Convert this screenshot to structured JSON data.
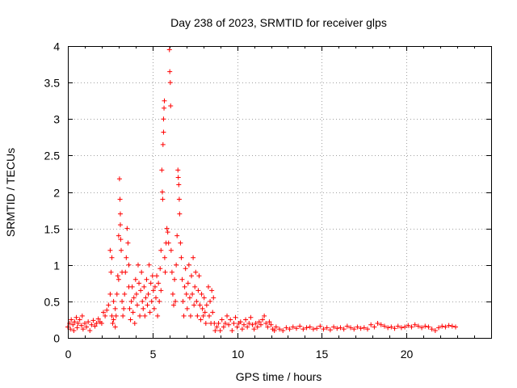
{
  "chart_data": {
    "type": "scatter",
    "title": "Day 238 of 2023, SRMTID for receiver glps",
    "xlabel": "GPS time / hours",
    "ylabel": "SRMTID / TECUs",
    "xlim": [
      0,
      25
    ],
    "ylim": [
      0,
      4
    ],
    "x_ticks": [
      0,
      5,
      10,
      15,
      20
    ],
    "x_tick_labels": [
      "0",
      "5",
      "10",
      "15",
      "20"
    ],
    "y_ticks": [
      0,
      0.5,
      1,
      1.5,
      2,
      2.5,
      3,
      3.5,
      4
    ],
    "y_tick_labels": [
      "0",
      "0.5",
      "1",
      "1.5",
      "2",
      "2.5",
      "3",
      "3.5",
      "4"
    ],
    "grid": true,
    "marker": "+",
    "color": "#ff0000",
    "series": [
      {
        "name": "SRMTID",
        "points": [
          [
            0.0,
            0.15
          ],
          [
            0.1,
            0.2
          ],
          [
            0.15,
            0.12
          ],
          [
            0.2,
            0.25
          ],
          [
            0.3,
            0.18
          ],
          [
            0.35,
            0.1
          ],
          [
            0.4,
            0.22
          ],
          [
            0.5,
            0.28
          ],
          [
            0.55,
            0.14
          ],
          [
            0.6,
            0.2
          ],
          [
            0.7,
            0.25
          ],
          [
            0.8,
            0.17
          ],
          [
            0.85,
            0.3
          ],
          [
            0.9,
            0.12
          ],
          [
            1.0,
            0.2
          ],
          [
            1.1,
            0.15
          ],
          [
            1.2,
            0.22
          ],
          [
            1.3,
            0.1
          ],
          [
            1.4,
            0.18
          ],
          [
            1.5,
            0.24
          ],
          [
            1.6,
            0.16
          ],
          [
            1.7,
            0.2
          ],
          [
            1.8,
            0.26
          ],
          [
            1.9,
            0.22
          ],
          [
            2.0,
            0.2
          ],
          [
            2.1,
            0.35
          ],
          [
            2.2,
            0.3
          ],
          [
            2.3,
            0.38
          ],
          [
            2.4,
            0.45
          ],
          [
            2.5,
            0.6
          ],
          [
            2.5,
            1.2
          ],
          [
            2.55,
            0.9
          ],
          [
            2.6,
            0.3
          ],
          [
            2.6,
            1.1
          ],
          [
            2.65,
            0.2
          ],
          [
            2.7,
            0.5
          ],
          [
            2.7,
            0.25
          ],
          [
            2.8,
            0.4
          ],
          [
            2.8,
            0.15
          ],
          [
            2.85,
            0.3
          ],
          [
            2.9,
            0.6
          ],
          [
            2.95,
            0.85
          ],
          [
            3.0,
            1.4
          ],
          [
            3.0,
            0.8
          ],
          [
            3.05,
            2.18
          ],
          [
            3.08,
            1.9
          ],
          [
            3.1,
            1.7
          ],
          [
            3.1,
            1.55
          ],
          [
            3.12,
            1.35
          ],
          [
            3.15,
            1.2
          ],
          [
            3.2,
            0.9
          ],
          [
            3.2,
            0.5
          ],
          [
            3.25,
            0.3
          ],
          [
            3.3,
            0.4
          ],
          [
            3.35,
            0.6
          ],
          [
            3.4,
            0.9
          ],
          [
            3.45,
            1.1
          ],
          [
            3.5,
            1.5
          ],
          [
            3.55,
            1.3
          ],
          [
            3.6,
            1.0
          ],
          [
            3.6,
            0.7
          ],
          [
            3.65,
            0.4
          ],
          [
            3.7,
            0.25
          ],
          [
            3.75,
            0.5
          ],
          [
            3.8,
            0.7
          ],
          [
            3.85,
            0.35
          ],
          [
            3.9,
            0.55
          ],
          [
            3.95,
            0.2
          ],
          [
            4.0,
            0.8
          ],
          [
            4.05,
            0.6
          ],
          [
            4.1,
            0.45
          ],
          [
            4.15,
            1.0
          ],
          [
            4.2,
            0.75
          ],
          [
            4.25,
            0.3
          ],
          [
            4.3,
            0.65
          ],
          [
            4.35,
            0.9
          ],
          [
            4.4,
            0.5
          ],
          [
            4.45,
            0.4
          ],
          [
            4.5,
            0.7
          ],
          [
            4.55,
            0.3
          ],
          [
            4.6,
            0.55
          ],
          [
            4.65,
            0.8
          ],
          [
            4.7,
            0.45
          ],
          [
            4.75,
            0.6
          ],
          [
            4.8,
            1.0
          ],
          [
            4.85,
            0.35
          ],
          [
            4.9,
            0.75
          ],
          [
            4.95,
            0.5
          ],
          [
            5.0,
            0.85
          ],
          [
            5.05,
            0.65
          ],
          [
            5.1,
            0.4
          ],
          [
            5.15,
            0.7
          ],
          [
            5.2,
            0.55
          ],
          [
            5.25,
            0.85
          ],
          [
            5.3,
            0.3
          ],
          [
            5.35,
            0.75
          ],
          [
            5.4,
            0.5
          ],
          [
            5.45,
            0.95
          ],
          [
            5.5,
            0.65
          ],
          [
            5.5,
            1.2
          ],
          [
            5.55,
            2.3
          ],
          [
            5.58,
            2.0
          ],
          [
            5.6,
            1.9
          ],
          [
            5.62,
            2.65
          ],
          [
            5.65,
            2.82
          ],
          [
            5.65,
            3.0
          ],
          [
            5.68,
            3.15
          ],
          [
            5.7,
            3.25
          ],
          [
            5.72,
            1.1
          ],
          [
            5.75,
            0.9
          ],
          [
            5.8,
            1.3
          ],
          [
            5.85,
            1.5
          ],
          [
            5.9,
            1.45
          ],
          [
            5.95,
            1.3
          ],
          [
            6.0,
            3.95
          ],
          [
            6.02,
            3.65
          ],
          [
            6.05,
            3.5
          ],
          [
            6.07,
            3.18
          ],
          [
            6.1,
            1.2
          ],
          [
            6.15,
            0.9
          ],
          [
            6.2,
            0.6
          ],
          [
            6.25,
            0.45
          ],
          [
            6.3,
            0.8
          ],
          [
            6.35,
            0.5
          ],
          [
            6.4,
            1.0
          ],
          [
            6.45,
            1.4
          ],
          [
            6.5,
            2.3
          ],
          [
            6.52,
            2.2
          ],
          [
            6.55,
            2.1
          ],
          [
            6.58,
            1.9
          ],
          [
            6.6,
            1.7
          ],
          [
            6.65,
            1.3
          ],
          [
            6.7,
            1.1
          ],
          [
            6.75,
            0.8
          ],
          [
            6.8,
            0.5
          ],
          [
            6.85,
            0.3
          ],
          [
            6.9,
            0.7
          ],
          [
            6.95,
            0.95
          ],
          [
            7.0,
            0.6
          ],
          [
            7.05,
            0.4
          ],
          [
            7.1,
            0.75
          ],
          [
            7.15,
            1.0
          ],
          [
            7.2,
            0.55
          ],
          [
            7.25,
            0.3
          ],
          [
            7.3,
            0.85
          ],
          [
            7.35,
            0.6
          ],
          [
            7.4,
            1.1
          ],
          [
            7.45,
            0.45
          ],
          [
            7.5,
            0.7
          ],
          [
            7.55,
            0.9
          ],
          [
            7.6,
            0.5
          ],
          [
            7.65,
            0.3
          ],
          [
            7.7,
            0.65
          ],
          [
            7.75,
            0.85
          ],
          [
            7.8,
            0.45
          ],
          [
            7.85,
            0.25
          ],
          [
            7.9,
            0.6
          ],
          [
            7.95,
            0.4
          ],
          [
            8.0,
            0.3
          ],
          [
            8.05,
            0.55
          ],
          [
            8.1,
            0.35
          ],
          [
            8.15,
            0.2
          ],
          [
            8.2,
            0.45
          ],
          [
            8.3,
            0.7
          ],
          [
            8.35,
            0.3
          ],
          [
            8.4,
            0.5
          ],
          [
            8.45,
            0.2
          ],
          [
            8.5,
            0.65
          ],
          [
            8.55,
            0.35
          ],
          [
            8.6,
            0.55
          ],
          [
            8.65,
            0.2
          ],
          [
            8.7,
            0.1
          ],
          [
            8.8,
            0.15
          ],
          [
            8.9,
            0.2
          ],
          [
            9.0,
            0.1
          ],
          [
            9.1,
            0.25
          ],
          [
            9.2,
            0.15
          ],
          [
            9.3,
            0.2
          ],
          [
            9.4,
            0.3
          ],
          [
            9.5,
            0.18
          ],
          [
            9.6,
            0.25
          ],
          [
            9.7,
            0.1
          ],
          [
            9.8,
            0.2
          ],
          [
            9.9,
            0.28
          ],
          [
            10.0,
            0.15
          ],
          [
            10.1,
            0.2
          ],
          [
            10.2,
            0.22
          ],
          [
            10.3,
            0.12
          ],
          [
            10.4,
            0.18
          ],
          [
            10.5,
            0.25
          ],
          [
            10.6,
            0.15
          ],
          [
            10.7,
            0.2
          ],
          [
            10.8,
            0.28
          ],
          [
            10.9,
            0.18
          ],
          [
            11.0,
            0.12
          ],
          [
            11.1,
            0.2
          ],
          [
            11.2,
            0.15
          ],
          [
            11.3,
            0.22
          ],
          [
            11.4,
            0.18
          ],
          [
            11.5,
            0.25
          ],
          [
            11.6,
            0.3
          ],
          [
            11.7,
            0.2
          ],
          [
            11.8,
            0.15
          ],
          [
            11.9,
            0.22
          ],
          [
            12.0,
            0.18
          ],
          [
            12.1,
            0.12
          ],
          [
            12.2,
            0.1
          ],
          [
            12.3,
            0.15
          ],
          [
            12.5,
            0.12
          ],
          [
            12.7,
            0.1
          ],
          [
            12.9,
            0.14
          ],
          [
            13.1,
            0.12
          ],
          [
            13.3,
            0.15
          ],
          [
            13.5,
            0.13
          ],
          [
            13.7,
            0.16
          ],
          [
            13.9,
            0.12
          ],
          [
            14.1,
            0.14
          ],
          [
            14.3,
            0.15
          ],
          [
            14.5,
            0.12
          ],
          [
            14.7,
            0.13
          ],
          [
            14.9,
            0.16
          ],
          [
            15.1,
            0.12
          ],
          [
            15.3,
            0.14
          ],
          [
            15.5,
            0.11
          ],
          [
            15.7,
            0.15
          ],
          [
            15.9,
            0.13
          ],
          [
            16.1,
            0.14
          ],
          [
            16.3,
            0.12
          ],
          [
            16.5,
            0.16
          ],
          [
            16.7,
            0.14
          ],
          [
            16.9,
            0.12
          ],
          [
            17.1,
            0.15
          ],
          [
            17.3,
            0.13
          ],
          [
            17.5,
            0.14
          ],
          [
            17.7,
            0.12
          ],
          [
            17.9,
            0.18
          ],
          [
            18.1,
            0.15
          ],
          [
            18.3,
            0.2
          ],
          [
            18.5,
            0.18
          ],
          [
            18.7,
            0.16
          ],
          [
            18.9,
            0.14
          ],
          [
            19.1,
            0.15
          ],
          [
            19.3,
            0.13
          ],
          [
            19.5,
            0.16
          ],
          [
            19.7,
            0.14
          ],
          [
            19.9,
            0.15
          ],
          [
            20.1,
            0.17
          ],
          [
            20.3,
            0.15
          ],
          [
            20.5,
            0.18
          ],
          [
            20.7,
            0.16
          ],
          [
            20.9,
            0.14
          ],
          [
            21.1,
            0.16
          ],
          [
            21.3,
            0.15
          ],
          [
            21.5,
            0.12
          ],
          [
            21.7,
            0.1
          ],
          [
            21.9,
            0.14
          ],
          [
            22.1,
            0.16
          ],
          [
            22.3,
            0.15
          ],
          [
            22.5,
            0.17
          ],
          [
            22.7,
            0.16
          ],
          [
            22.9,
            0.15
          ]
        ]
      }
    ]
  }
}
